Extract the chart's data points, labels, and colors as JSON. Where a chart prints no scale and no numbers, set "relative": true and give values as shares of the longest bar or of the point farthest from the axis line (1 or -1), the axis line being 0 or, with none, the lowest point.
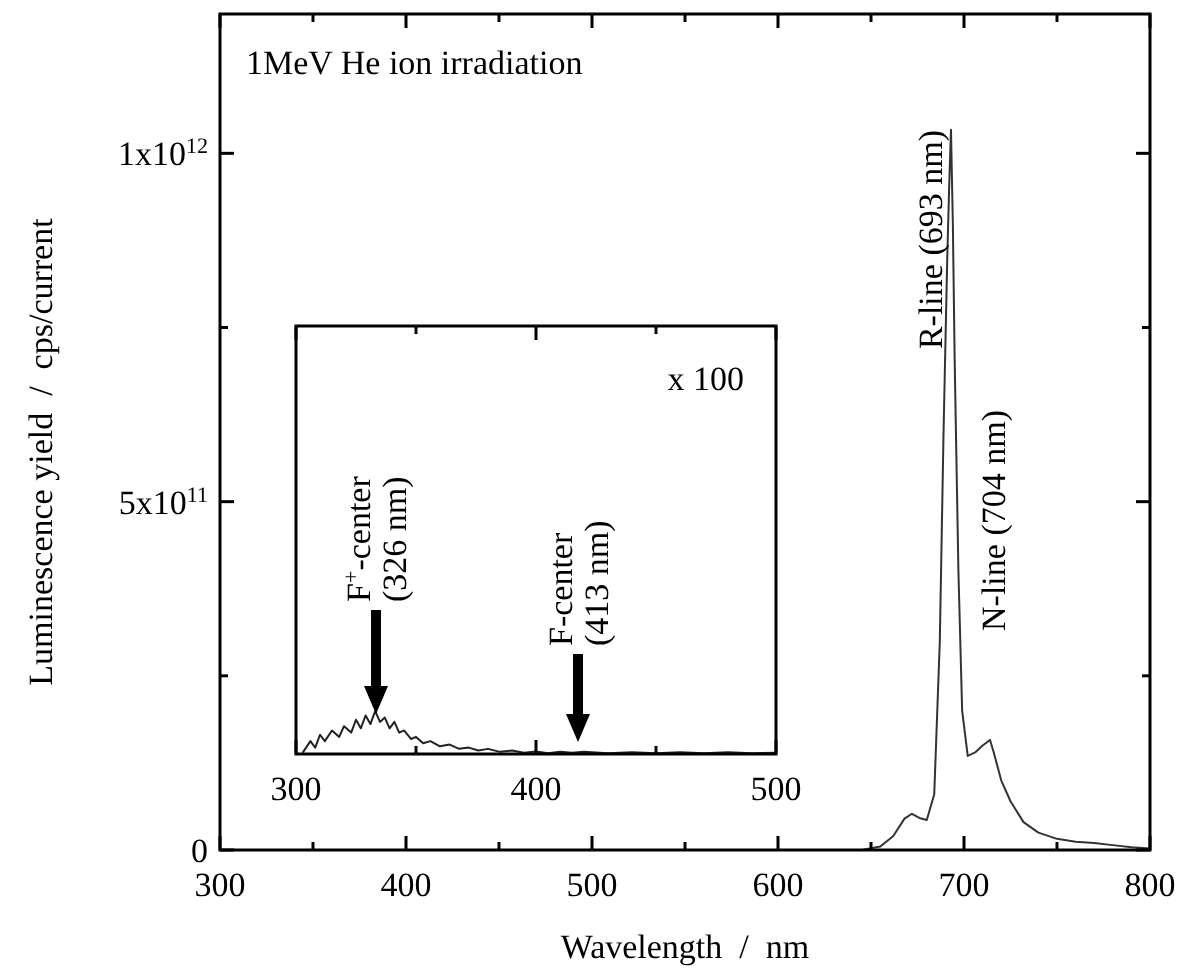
{
  "chart_data": [
    {
      "type": "line",
      "xlabel": "Wavelength  /  nm",
      "ylabel": "Luminescence yield  /  cps/current",
      "x": [
        645,
        655,
        662,
        668,
        672,
        676,
        680,
        684,
        687,
        689,
        691,
        692,
        693,
        694,
        695,
        697,
        699,
        702,
        706,
        710,
        714,
        716,
        720,
        725,
        732,
        740,
        750,
        760,
        770,
        780,
        790,
        800
      ],
      "series": [
        {
          "color": "#333333",
          "values": [
            0,
            5000000000.0,
            20000000000.0,
            45000000000.0,
            52000000000.0,
            46000000000.0,
            43000000000.0,
            80000000000.0,
            300000000000.0,
            600000000000.0,
            850000000000.0,
            950000000000.0,
            1034000000000.0,
            900000000000.0,
            700000000000.0,
            400000000000.0,
            200000000000.0,
            135000000000.0,
            140000000000.0,
            150000000000.0,
            158000000000.0,
            140000000000.0,
            100000000000.0,
            70000000000.0,
            40000000000.0,
            25000000000.0,
            16000000000.0,
            12000000000.0,
            10000000000.0,
            7000000000.0,
            4000000000.0,
            2000000000.0
          ]
        }
      ],
      "xlim": [
        300,
        800
      ],
      "ylim": [
        0,
        1200000000000.0
      ],
      "xticks": [
        300,
        {
          "value": 350,
          "label": null
        },
        400,
        {
          "value": 450,
          "label": null
        },
        500,
        {
          "value": 550,
          "label": null
        },
        600,
        {
          "value": 650,
          "label": null
        },
        700,
        {
          "value": 750,
          "label": null
        },
        800
      ],
      "yticks": [
        0,
        {
          "value": 250000000000.0,
          "label": null
        },
        {
          "value": 500000000000.0,
          "label": "5x10$^{11}$"
        },
        {
          "value": 750000000000.0,
          "label": null
        },
        {
          "value": 1000000000000.0,
          "label": "1x10$^{12}$"
        }
      ],
      "annotations": [
        "1MeV He ion irradiation",
        "R-line (693 nm)",
        "N-line (704 nm)"
      ]
    },
    {
      "type": "line",
      "relative": true,
      "x": [
        303,
        306,
        308,
        310,
        312,
        315,
        318,
        320,
        323,
        325,
        327,
        329,
        331,
        333,
        335,
        337,
        339,
        341,
        343,
        345,
        348,
        350,
        353,
        356,
        360,
        364,
        368,
        372,
        376,
        380,
        385,
        390,
        395,
        400,
        405,
        410,
        415,
        420,
        430,
        440,
        450,
        460,
        470,
        480,
        490,
        500
      ],
      "series": [
        {
          "color": "#222222",
          "values": [
            0.05,
            0.3,
            0.15,
            0.45,
            0.3,
            0.55,
            0.4,
            0.65,
            0.5,
            0.8,
            0.6,
            0.9,
            0.7,
            1.0,
            0.75,
            0.85,
            0.6,
            0.75,
            0.5,
            0.55,
            0.35,
            0.4,
            0.25,
            0.3,
            0.18,
            0.22,
            0.12,
            0.15,
            0.08,
            0.12,
            0.05,
            0.08,
            0.03,
            0.06,
            0.02,
            0.05,
            0.03,
            0.05,
            0.02,
            0.04,
            0.02,
            0.04,
            0.02,
            0.04,
            0.02,
            0.03
          ]
        }
      ],
      "xlim": [
        300,
        500
      ],
      "xticks": [
        300,
        {
          "value": 350,
          "label": null
        },
        400,
        {
          "value": 450,
          "label": null
        },
        500
      ],
      "annotations": [
        "x 100",
        "F$^{+}$-center\n(326 nm)",
        "F-center\n(413 nm)"
      ]
    }
  ]
}
